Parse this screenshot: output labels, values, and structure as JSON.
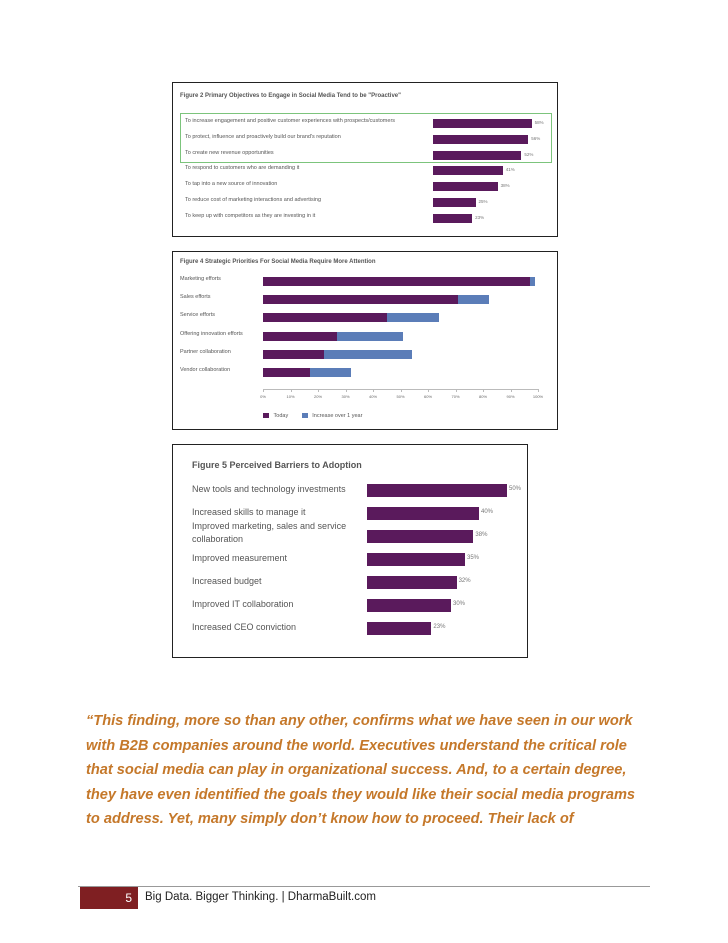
{
  "chart_data": [
    {
      "type": "bar",
      "title": "Figure 2 Primary Objectives to Engage in Social Media Tend to be \"Proactive\"",
      "categories": [
        "To increase engagement and positive customer experiences with prospects/customers",
        "To protect, influence and proactively build our brand's reputation",
        "To create new revenue opportunities",
        "To respond to customers who are demanding it",
        "To tap into a new source of innovation",
        "To reduce cost of marketing interactions and advertising",
        "To keep up with competitors as they are investing in it"
      ],
      "values": [
        58,
        56,
        52,
        41,
        38,
        25,
        23
      ],
      "value_labels": [
        "58%",
        "56%",
        "52%",
        "41%",
        "38%",
        "25%",
        "23%"
      ],
      "highlight_first_n": 3,
      "xlim": [
        0,
        100
      ]
    },
    {
      "type": "bar",
      "title": "Figure 4 Strategic Priorities For Social Media Require More Attention",
      "categories": [
        "Marketing efforts",
        "Sales efforts",
        "Service efforts",
        "Offering innovation efforts",
        "Partner collaboration",
        "Vendor collaboration"
      ],
      "series": [
        {
          "name": "Today",
          "values": [
            97,
            71,
            45,
            27,
            22,
            17
          ]
        },
        {
          "name": "Increase over 1 year",
          "values": [
            2,
            11,
            19,
            24,
            32,
            15
          ]
        }
      ],
      "stacked": true,
      "xlim": [
        0,
        100
      ],
      "xticks": [
        "0%",
        "10%",
        "20%",
        "30%",
        "40%",
        "50%",
        "60%",
        "70%",
        "80%",
        "90%",
        "100%"
      ],
      "legend_placement": "bottom-left",
      "grid": false
    },
    {
      "type": "bar",
      "title": "Figure 5 Perceived Barriers to Adoption",
      "categories": [
        "New tools and technology investments",
        "Increased skills to manage it",
        "Improved marketing, sales and service collaboration",
        "Improved measurement",
        "Increased budget",
        "Improved IT collaboration",
        "Increased CEO conviction"
      ],
      "category_lines": [
        [
          "New tools and technology investments"
        ],
        [
          "Increased skills to manage it"
        ],
        [
          "Improved marketing, sales and service",
          "collaboration"
        ],
        [
          "Improved measurement"
        ],
        [
          "Increased budget"
        ],
        [
          "Improved IT collaboration"
        ],
        [
          "Increased CEO conviction"
        ]
      ],
      "values": [
        50,
        40,
        38,
        35,
        32,
        30,
        23
      ],
      "value_labels": [
        "50%",
        "40%",
        "38%",
        "35%",
        "32%",
        "30%",
        "23%"
      ],
      "xlim": [
        0,
        100
      ]
    }
  ],
  "colors": {
    "bar_primary": "#5a1a5c",
    "bar_secondary": "#5b7db8",
    "highlight_box": "#7cc47c",
    "quote": "#c5782a",
    "page_box": "#7f1f22"
  },
  "quote_lines": [
    "“This finding, more so than any other, confirms what we have seen in our work",
    "with B2B companies around the world. Executives understand the critical role",
    "that social media can play in organizational success. And, to a certain degree,",
    "they have even identified the goals they would like their social media programs",
    "to address. Yet, many simply don’t know how to proceed. Their lack of"
  ],
  "footer": {
    "page_number": "5",
    "text": "Big Data. Bigger Thinking. | DharmaBuilt.com"
  }
}
